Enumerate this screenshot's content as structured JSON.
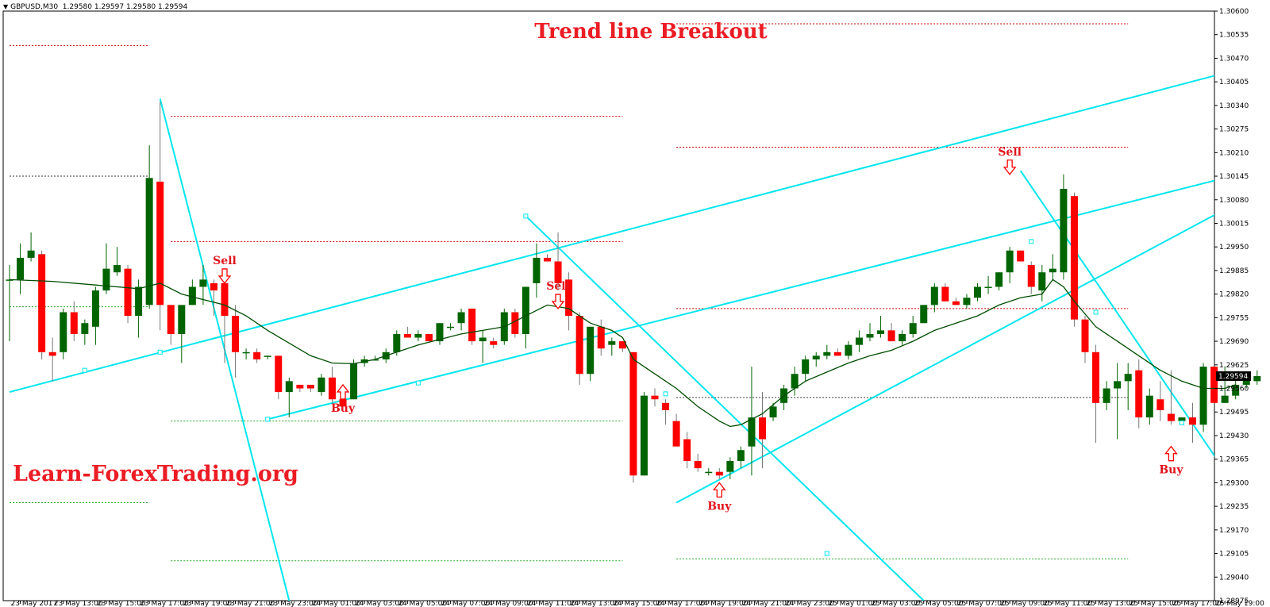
{
  "header": {
    "symbol": "GBPUSD,M30",
    "ohlc": "1.29580 1.29597 1.29580 1.29594"
  },
  "title": "Trend line Breakout",
  "watermark": "Learn-ForexTrading.org",
  "current_price": "1.29594",
  "colors": {
    "bull": "#006400",
    "bear": "#ff0000",
    "ma": "#004d00",
    "trendline": "#00e6ee",
    "level_red": "#cc0000",
    "level_green": "#22aa22",
    "level_black": "#333333",
    "title": "#ec1c24",
    "price_tag": "#000000"
  },
  "chart_data": {
    "type": "candlestick",
    "title": "Trend line Breakout",
    "y_ticks": [
      "1.30600",
      "1.30535",
      "1.30470",
      "1.30405",
      "1.30340",
      "1.30275",
      "1.30210",
      "1.30145",
      "1.30080",
      "1.30015",
      "1.29950",
      "1.29885",
      "1.29820",
      "1.29755",
      "1.29690",
      "1.29625",
      "1.29560",
      "1.29495",
      "1.29430",
      "1.29365",
      "1.29300",
      "1.29235",
      "1.29170",
      "1.29105",
      "1.29040",
      "1.28975"
    ],
    "ylim": [
      1.28975,
      1.306
    ],
    "x_ticks": [
      {
        "label": "23 May 2017",
        "idx": 1
      },
      {
        "label": "23 May 13:00",
        "idx": 5
      },
      {
        "label": "23 May 15:00",
        "idx": 9
      },
      {
        "label": "23 May 17:00",
        "idx": 13
      },
      {
        "label": "23 May 19:00",
        "idx": 17
      },
      {
        "label": "23 May 21:00",
        "idx": 21
      },
      {
        "label": "23 May 23:00",
        "idx": 25
      },
      {
        "label": "24 May 01:00",
        "idx": 29
      },
      {
        "label": "24 May 03:00",
        "idx": 33
      },
      {
        "label": "24 May 05:00",
        "idx": 37
      },
      {
        "label": "24 May 07:00",
        "idx": 41
      },
      {
        "label": "24 May 09:00",
        "idx": 45
      },
      {
        "label": "24 May 11:00",
        "idx": 49
      },
      {
        "label": "24 May 13:00",
        "idx": 53
      },
      {
        "label": "24 May 15:00",
        "idx": 57
      },
      {
        "label": "24 May 17:00",
        "idx": 61
      },
      {
        "label": "24 May 19:00",
        "idx": 65
      },
      {
        "label": "24 May 21:00",
        "idx": 69
      },
      {
        "label": "24 May 23:00",
        "idx": 73
      },
      {
        "label": "25 May 01:00",
        "idx": 77
      },
      {
        "label": "25 May 03:00",
        "idx": 81
      },
      {
        "label": "25 May 05:00",
        "idx": 85
      },
      {
        "label": "25 May 07:00",
        "idx": 89
      },
      {
        "label": "25 May 09:00",
        "idx": 93
      },
      {
        "label": "25 May 11:00",
        "idx": 97
      },
      {
        "label": "25 May 13:00",
        "idx": 101
      },
      {
        "label": "25 May 15:00",
        "idx": 105
      },
      {
        "label": "25 May 17:00",
        "idx": 109
      },
      {
        "label": "25 May 19:00",
        "idx": 113
      }
    ],
    "candles": [
      [
        1.2986,
        1.299,
        1.2969,
        1.2986
      ],
      [
        1.2986,
        1.2996,
        1.2982,
        1.2992
      ],
      [
        1.2992,
        1.2999,
        1.2991,
        1.2994
      ],
      [
        1.2993,
        1.2994,
        1.2964,
        1.2966
      ],
      [
        1.2966,
        1.297,
        1.2958,
        1.2965
      ],
      [
        1.2966,
        1.2978,
        1.2964,
        1.2977
      ],
      [
        1.2977,
        1.298,
        1.2969,
        1.2971
      ],
      [
        1.2971,
        1.2975,
        1.2968,
        1.2974
      ],
      [
        1.2973,
        1.2984,
        1.2968,
        1.2983
      ],
      [
        1.2983,
        1.2996,
        1.2982,
        1.2989
      ],
      [
        1.2988,
        1.2995,
        1.2987,
        1.299
      ],
      [
        1.2989,
        1.299,
        1.2974,
        1.2976
      ],
      [
        1.2976,
        1.2986,
        1.297,
        1.2984
      ],
      [
        1.2979,
        1.3023,
        1.2978,
        1.3014
      ],
      [
        1.3013,
        1.3035,
        1.2972,
        1.2979
      ],
      [
        1.2979,
        1.2979,
        1.2968,
        1.2971
      ],
      [
        1.2971,
        1.2979,
        1.2963,
        1.2979
      ],
      [
        1.2979,
        1.2986,
        1.2979,
        1.2984
      ],
      [
        1.2984,
        1.299,
        1.2979,
        1.2986
      ],
      [
        1.2985,
        1.2986,
        1.2976,
        1.2983
      ],
      [
        1.2985,
        1.2985,
        1.2963,
        1.2976
      ],
      [
        1.2976,
        1.2979,
        1.2959,
        1.2966
      ],
      [
        1.2966,
        1.2967,
        1.2964,
        1.2966
      ],
      [
        1.2966,
        1.2967,
        1.2963,
        1.2964
      ],
      [
        1.2965,
        1.2965,
        1.2964,
        1.2965
      ],
      [
        1.2965,
        1.2965,
        1.2953,
        1.2955
      ],
      [
        1.2955,
        1.2959,
        1.2948,
        1.2958
      ],
      [
        1.2957,
        1.2957,
        1.2955,
        1.2956
      ],
      [
        1.2957,
        1.2957,
        1.2955,
        1.2956
      ],
      [
        1.2955,
        1.296,
        1.2954,
        1.2959
      ],
      [
        1.2959,
        1.2962,
        1.2952,
        1.2953
      ],
      [
        1.2953,
        1.2954,
        1.2951,
        1.2951
      ],
      [
        1.2953,
        1.2964,
        1.2953,
        1.2963
      ],
      [
        1.2963,
        1.2965,
        1.2962,
        1.2964
      ],
      [
        1.2964,
        1.2965,
        1.2964,
        1.2964
      ],
      [
        1.2964,
        1.2967,
        1.2963,
        1.2966
      ],
      [
        1.2966,
        1.2972,
        1.2965,
        1.2971
      ],
      [
        1.2971,
        1.2973,
        1.297,
        1.297
      ],
      [
        1.297,
        1.2972,
        1.2969,
        1.2971
      ],
      [
        1.2971,
        1.2971,
        1.2969,
        1.2969
      ],
      [
        1.2969,
        1.2974,
        1.2968,
        1.2974
      ],
      [
        1.2973,
        1.2974,
        1.2972,
        1.2973
      ],
      [
        1.2974,
        1.2978,
        1.2972,
        1.2977
      ],
      [
        1.2978,
        1.2978,
        1.2968,
        1.2969
      ],
      [
        1.2969,
        1.2972,
        1.2963,
        1.297
      ],
      [
        1.2969,
        1.297,
        1.2967,
        1.2968
      ],
      [
        1.2969,
        1.2978,
        1.2968,
        1.2977
      ],
      [
        1.2977,
        1.2978,
        1.297,
        1.2971
      ],
      [
        1.2971,
        1.2984,
        1.2967,
        1.2984
      ],
      [
        1.2985,
        1.2996,
        1.2981,
        1.2992
      ],
      [
        1.2992,
        1.2993,
        1.2991,
        1.2991
      ],
      [
        1.2991,
        1.2999,
        1.2983,
        1.2985
      ],
      [
        1.2986,
        1.2988,
        1.2972,
        1.2976
      ],
      [
        1.2976,
        1.2977,
        1.2957,
        1.296
      ],
      [
        1.296,
        1.2973,
        1.2958,
        1.2973
      ],
      [
        1.2973,
        1.2975,
        1.2965,
        1.2967
      ],
      [
        1.2968,
        1.297,
        1.2965,
        1.2969
      ],
      [
        1.2969,
        1.2969,
        1.2966,
        1.2967
      ],
      [
        1.2966,
        1.2965,
        1.293,
        1.2932
      ],
      [
        1.2932,
        1.2955,
        1.2932,
        1.2954
      ],
      [
        1.2954,
        1.2956,
        1.2951,
        1.2953
      ],
      [
        1.2952,
        1.2953,
        1.2946,
        1.295
      ],
      [
        1.2947,
        1.2949,
        1.294,
        1.294
      ],
      [
        1.2942,
        1.2944,
        1.2934,
        1.2936
      ],
      [
        1.2936,
        1.2938,
        1.2933,
        1.2934
      ],
      [
        1.2933,
        1.2934,
        1.2932,
        1.2933
      ],
      [
        1.2933,
        1.2934,
        1.2931,
        1.2932
      ],
      [
        1.2933,
        1.2937,
        1.2931,
        1.2936
      ],
      [
        1.2936,
        1.294,
        1.2934,
        1.2939
      ],
      [
        1.294,
        1.2962,
        1.2932,
        1.2948
      ],
      [
        1.2948,
        1.2955,
        1.2934,
        1.2942
      ],
      [
        1.2948,
        1.2952,
        1.2947,
        1.2951
      ],
      [
        1.2952,
        1.2957,
        1.295,
        1.2956
      ],
      [
        1.2956,
        1.2962,
        1.2954,
        1.296
      ],
      [
        1.296,
        1.2965,
        1.2958,
        1.2964
      ],
      [
        1.2964,
        1.2966,
        1.2962,
        1.2965
      ],
      [
        1.2965,
        1.2968,
        1.2964,
        1.2966
      ],
      [
        1.2966,
        1.2967,
        1.2965,
        1.2965
      ],
      [
        1.2965,
        1.2969,
        1.2964,
        1.2968
      ],
      [
        1.2968,
        1.2972,
        1.2966,
        1.297
      ],
      [
        1.297,
        1.2974,
        1.2969,
        1.2971
      ],
      [
        1.2971,
        1.2976,
        1.297,
        1.2972
      ],
      [
        1.2972,
        1.2974,
        1.2969,
        1.2969
      ],
      [
        1.2969,
        1.2972,
        1.2968,
        1.2971
      ],
      [
        1.2971,
        1.2976,
        1.297,
        1.2974
      ],
      [
        1.2974,
        1.2979,
        1.2974,
        1.2979
      ],
      [
        1.2979,
        1.2985,
        1.2977,
        1.2984
      ],
      [
        1.2984,
        1.2985,
        1.298,
        1.298
      ],
      [
        1.298,
        1.2981,
        1.2979,
        1.2979
      ],
      [
        1.2979,
        1.2982,
        1.2978,
        1.2981
      ],
      [
        1.2981,
        1.2985,
        1.298,
        1.2984
      ],
      [
        1.2984,
        1.2987,
        1.2982,
        1.2984
      ],
      [
        1.2984,
        1.2988,
        1.2983,
        1.2988
      ],
      [
        1.2988,
        1.2995,
        1.2985,
        1.2994
      ],
      [
        1.2994,
        1.2994,
        1.2991,
        1.2991
      ],
      [
        1.299,
        1.2991,
        1.2982,
        1.2984
      ],
      [
        1.2983,
        1.299,
        1.298,
        1.2988
      ],
      [
        1.2988,
        1.2993,
        1.2986,
        1.2989
      ],
      [
        1.2988,
        1.3015,
        1.2986,
        1.3011
      ],
      [
        1.3009,
        1.301,
        1.2973,
        1.2975
      ],
      [
        1.2975,
        1.2976,
        1.2963,
        1.2966
      ],
      [
        1.2966,
        1.2968,
        1.2941,
        1.2952
      ],
      [
        1.2952,
        1.2958,
        1.295,
        1.2956
      ],
      [
        1.2956,
        1.2963,
        1.2942,
        1.2958
      ],
      [
        1.2958,
        1.2963,
        1.295,
        1.296
      ],
      [
        1.2961,
        1.2964,
        1.2945,
        1.2948
      ],
      [
        1.2948,
        1.2956,
        1.2946,
        1.2954
      ],
      [
        1.2953,
        1.2958,
        1.2947,
        1.295
      ],
      [
        1.2949,
        1.2961,
        1.2946,
        1.2947
      ],
      [
        1.2947,
        1.2948,
        1.2946,
        1.2948
      ],
      [
        1.2948,
        1.2952,
        1.2941,
        1.2946
      ],
      [
        1.2946,
        1.2963,
        1.2944,
        1.2962
      ],
      [
        1.2962,
        1.2963,
        1.2951,
        1.2952
      ],
      [
        1.2952,
        1.2962,
        1.2952,
        1.2954
      ],
      [
        1.2954,
        1.2959,
        1.2953,
        1.2957
      ],
      [
        1.2957,
        1.296,
        1.2956,
        1.2959
      ],
      [
        1.2958,
        1.2961,
        1.2957,
        1.29594
      ]
    ],
    "moving_average": [
      [
        0,
        1.2986
      ],
      [
        4,
        1.29855
      ],
      [
        8,
        1.29845
      ],
      [
        12,
        1.29835
      ],
      [
        14,
        1.2985
      ],
      [
        16,
        1.2982
      ],
      [
        18,
        1.29805
      ],
      [
        20,
        1.2979
      ],
      [
        22,
        1.2976
      ],
      [
        24,
        1.2972
      ],
      [
        26,
        1.29685
      ],
      [
        28,
        1.2965
      ],
      [
        30,
        1.2963
      ],
      [
        32,
        1.29628
      ],
      [
        34,
        1.2964
      ],
      [
        36,
        1.2966
      ],
      [
        38,
        1.2968
      ],
      [
        40,
        1.29695
      ],
      [
        42,
        1.2971
      ],
      [
        44,
        1.2972
      ],
      [
        46,
        1.2973
      ],
      [
        48,
        1.2976
      ],
      [
        50,
        1.2979
      ],
      [
        52,
        1.2978
      ],
      [
        54,
        1.2974
      ],
      [
        56,
        1.2972
      ],
      [
        57,
        1.297
      ],
      [
        58,
        1.2964
      ],
      [
        60,
        1.296
      ],
      [
        62,
        1.2956
      ],
      [
        64,
        1.2951
      ],
      [
        66,
        1.2947
      ],
      [
        67,
        1.29455
      ],
      [
        68,
        1.2946
      ],
      [
        70,
        1.2949
      ],
      [
        72,
        1.2954
      ],
      [
        74,
        1.2958
      ],
      [
        76,
        1.29605
      ],
      [
        78,
        1.2963
      ],
      [
        80,
        1.2965
      ],
      [
        82,
        1.29665
      ],
      [
        84,
        1.2969
      ],
      [
        86,
        1.2972
      ],
      [
        88,
        1.2974
      ],
      [
        90,
        1.2976
      ],
      [
        92,
        1.2979
      ],
      [
        94,
        1.2981
      ],
      [
        96,
        1.2982
      ],
      [
        97,
        1.2986
      ],
      [
        98,
        1.2984
      ],
      [
        99,
        1.298
      ],
      [
        101,
        1.2973
      ],
      [
        103,
        1.2969
      ],
      [
        105,
        1.2965
      ],
      [
        107,
        1.2961
      ],
      [
        109,
        1.2958
      ],
      [
        111,
        1.2956
      ],
      [
        113,
        1.2956
      ],
      [
        114,
        1.2957
      ]
    ],
    "horizontal_levels": [
      {
        "price": 1.30505,
        "from": 0,
        "to": 13,
        "color": "red"
      },
      {
        "price": 1.29785,
        "from": 0,
        "to": 13,
        "color": "green"
      },
      {
        "price": 1.30145,
        "from": 0,
        "to": 13,
        "color": "black"
      },
      {
        "price": 1.29245,
        "from": 0,
        "to": 13,
        "color": "green"
      },
      {
        "price": 1.3031,
        "from": 15,
        "to": 57,
        "color": "red"
      },
      {
        "price": 1.29965,
        "from": 15,
        "to": 57,
        "color": "red"
      },
      {
        "price": 1.2947,
        "from": 15,
        "to": 57,
        "color": "green"
      },
      {
        "price": 1.29085,
        "from": 15,
        "to": 57,
        "color": "green"
      },
      {
        "price": 1.30565,
        "from": 62,
        "to": 104,
        "color": "red"
      },
      {
        "price": 1.30225,
        "from": 62,
        "to": 104,
        "color": "red"
      },
      {
        "price": 1.2978,
        "from": 62,
        "to": 104,
        "color": "red"
      },
      {
        "price": 1.29535,
        "from": 62,
        "to": 104,
        "color": "black"
      },
      {
        "price": 1.2909,
        "from": 62,
        "to": 104,
        "color": "green"
      }
    ],
    "trendlines": [
      {
        "x1": 14,
        "y1": 1.30358,
        "x2": 26,
        "y2": 1.28975
      },
      {
        "x1": 0,
        "y1": 1.2955,
        "x2": 115,
        "y2": 1.30445
      },
      {
        "x1": 24,
        "y1": 1.29475,
        "x2": 115,
        "y2": 1.30155
      },
      {
        "x1": 48,
        "y1": 1.30035,
        "x2": 85,
        "y2": 1.28975
      },
      {
        "x1": 62,
        "y1": 1.29245,
        "x2": 115,
        "y2": 1.30085
      },
      {
        "x1": 94,
        "y1": 1.3016,
        "x2": 115,
        "y2": 1.29245
      }
    ],
    "trendline_markers": [
      [
        7,
        1.2961
      ],
      [
        14,
        1.2966
      ],
      [
        24,
        1.29475
      ],
      [
        38,
        1.29575
      ],
      [
        48,
        1.30035
      ],
      [
        61,
        1.29545
      ],
      [
        76,
        1.29105
      ],
      [
        95,
        1.29965
      ],
      [
        101,
        1.2977
      ],
      [
        109,
        1.29465
      ]
    ],
    "signals": [
      {
        "type": "sell",
        "label": "Sell",
        "idx": 20,
        "price": 1.2985
      },
      {
        "type": "buy",
        "label": "Buy",
        "idx": 31,
        "price": 1.2957
      },
      {
        "type": "sell",
        "label": "Sell",
        "idx": 51,
        "price": 1.2978
      },
      {
        "type": "buy",
        "label": "Buy",
        "idx": 66,
        "price": 1.293
      },
      {
        "type": "sell",
        "label": "Sell",
        "idx": 93,
        "price": 1.3015
      },
      {
        "type": "buy",
        "label": "Buy",
        "idx": 108,
        "price": 1.294
      }
    ]
  }
}
